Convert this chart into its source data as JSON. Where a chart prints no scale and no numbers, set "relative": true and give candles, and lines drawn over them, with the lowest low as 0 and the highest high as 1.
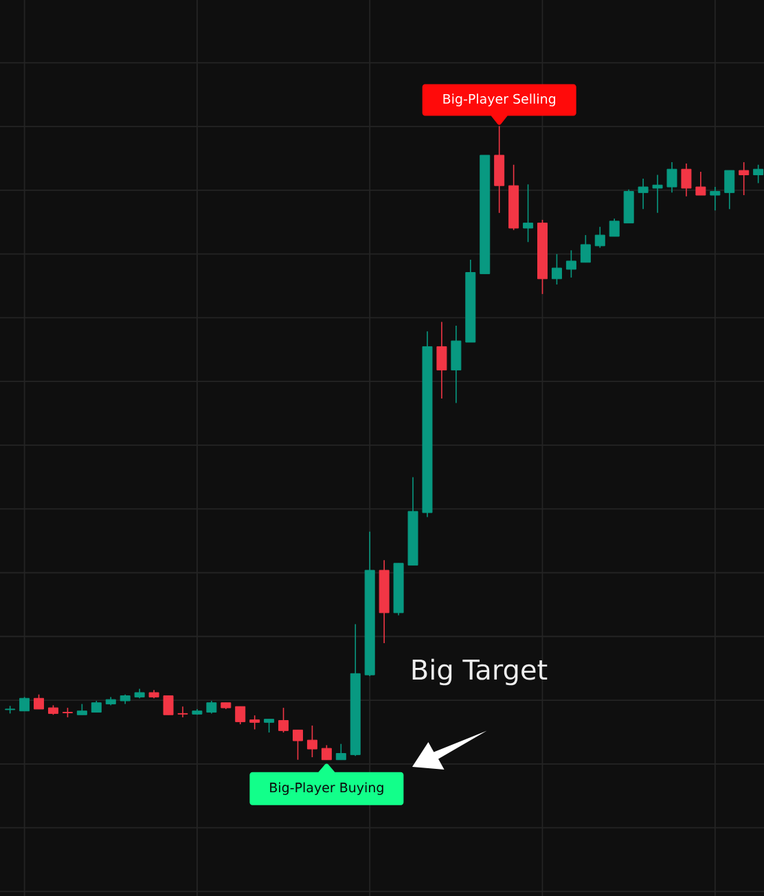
{
  "chart_data": {
    "type": "candlestick",
    "relative": true,
    "categories": [
      null,
      null,
      null,
      null,
      null,
      null,
      null,
      null,
      null,
      null,
      null,
      null,
      null,
      null,
      null,
      null,
      null,
      null,
      null,
      null,
      null,
      null,
      null,
      null,
      null,
      null,
      null,
      null,
      null,
      null,
      null,
      null,
      null,
      null,
      null,
      null,
      null,
      null,
      null,
      null,
      null,
      null,
      null,
      null,
      null,
      null,
      null,
      null,
      null,
      null,
      null,
      null,
      null
    ],
    "ohlc": [
      [
        0.079,
        0.085,
        0.073,
        0.08
      ],
      [
        0.077,
        0.099,
        0.077,
        0.097
      ],
      [
        0.097,
        0.103,
        0.08,
        0.08
      ],
      [
        0.082,
        0.086,
        0.071,
        0.073
      ],
      [
        0.075,
        0.082,
        0.067,
        0.074
      ],
      [
        0.071,
        0.088,
        0.071,
        0.077
      ],
      [
        0.075,
        0.093,
        0.075,
        0.09
      ],
      [
        0.088,
        0.099,
        0.086,
        0.095
      ],
      [
        0.093,
        0.103,
        0.088,
        0.101
      ],
      [
        0.099,
        0.112,
        0.097,
        0.106
      ],
      [
        0.106,
        0.11,
        0.097,
        0.099
      ],
      [
        0.101,
        0.101,
        0.071,
        0.071
      ],
      [
        0.073,
        0.084,
        0.067,
        0.072
      ],
      [
        0.072,
        0.08,
        0.071,
        0.077
      ],
      [
        0.075,
        0.093,
        0.073,
        0.09
      ],
      [
        0.09,
        0.09,
        0.08,
        0.082
      ],
      [
        0.084,
        0.084,
        0.056,
        0.06
      ],
      [
        0.063,
        0.07,
        0.048,
        0.059
      ],
      [
        0.059,
        0.064,
        0.043,
        0.064
      ],
      [
        0.062,
        0.082,
        0.043,
        0.046
      ],
      [
        0.047,
        0.047,
        0,
        0.03
      ],
      [
        0.031,
        0.054,
        0.004,
        0.017
      ],
      [
        0.018,
        0.023,
        0,
        0
      ],
      [
        0,
        0.025,
        0,
        0.01
      ],
      [
        0.008,
        0.214,
        0.006,
        0.136
      ],
      [
        0.134,
        0.36,
        0.132,
        0.299
      ],
      [
        0.299,
        0.315,
        0.184,
        0.232
      ],
      [
        0.232,
        0.31,
        0.228,
        0.31
      ],
      [
        0.307,
        0.446,
        0.307,
        0.392
      ],
      [
        0.39,
        0.676,
        0.383,
        0.652
      ],
      [
        0.652,
        0.691,
        0.57,
        0.615
      ],
      [
        0.615,
        0.685,
        0.563,
        0.661
      ],
      [
        0.659,
        0.789,
        0.659,
        0.769
      ],
      [
        0.767,
        0.954,
        0.767,
        0.954
      ],
      [
        0.954,
        1,
        0.863,
        0.906
      ],
      [
        0.906,
        0.939,
        0.836,
        0.839
      ],
      [
        0.839,
        0.908,
        0.817,
        0.847
      ],
      [
        0.847,
        0.852,
        0.735,
        0.759
      ],
      [
        0.759,
        0.798,
        0.75,
        0.776
      ],
      [
        0.774,
        0.804,
        0.761,
        0.787
      ],
      [
        0.785,
        0.828,
        0.785,
        0.813
      ],
      [
        0.811,
        0.841,
        0.808,
        0.828
      ],
      [
        0.826,
        0.854,
        0.826,
        0.85
      ],
      [
        0.847,
        0.9,
        0.847,
        0.897
      ],
      [
        0.895,
        0.917,
        0.869,
        0.904
      ],
      [
        0.902,
        0.923,
        0.863,
        0.907
      ],
      [
        0.904,
        0.943,
        0.895,
        0.932
      ],
      [
        0.932,
        0.941,
        0.889,
        0.902
      ],
      [
        0.904,
        0.928,
        0.891,
        0.891
      ],
      [
        0.891,
        0.904,
        0.867,
        0.897
      ],
      [
        0.895,
        0.93,
        0.869,
        0.93
      ],
      [
        0.93,
        0.943,
        0.891,
        0.923
      ],
      [
        0.923,
        0.939,
        0.91,
        0.932
      ]
    ],
    "colors": [
      "#089981",
      "#089981",
      "#f23645",
      "#f23645",
      "#f23645",
      "#089981",
      "#089981",
      "#089981",
      "#089981",
      "#089981",
      "#f23645",
      "#f23645",
      "#f23645",
      "#089981",
      "#089981",
      "#f23645",
      "#f23645",
      "#f23645",
      "#089981",
      "#f23645",
      "#f23645",
      "#f23645",
      "#f23645",
      "#089981",
      "#089981",
      "#089981",
      "#f23645",
      "#089981",
      "#089981",
      "#089981",
      "#f23645",
      "#089981",
      "#089981",
      "#089981",
      "#f23645",
      "#f23645",
      "#089981",
      "#f23645",
      "#089981",
      "#089981",
      "#089981",
      "#089981",
      "#089981",
      "#089981",
      "#089981",
      "#089981",
      "#089981",
      "#f23645",
      "#f23645",
      "#089981",
      "#089981",
      "#f23645",
      "#089981"
    ],
    "annotations": [
      "Big-Player Selling",
      "Big-Player Buying",
      "Big Target"
    ],
    "grid": true
  }
}
